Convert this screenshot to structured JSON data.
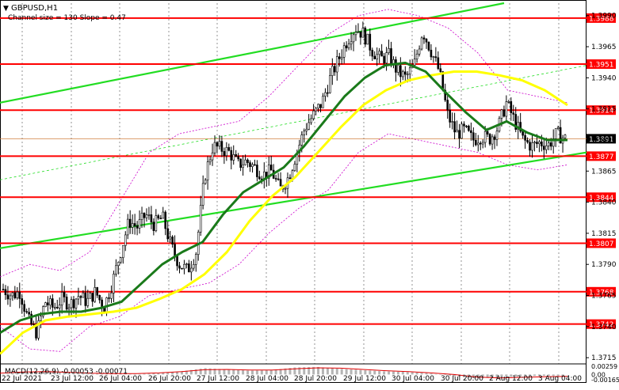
{
  "header": {
    "symbol_label": "GBPUSD,H1",
    "channel_info": "Channel size = 130  Slope = 0.47"
  },
  "macd": {
    "label": "MACD(12,26,9) -0.00053 -0.00071",
    "ticks": [
      "0.00259",
      "0.00",
      "-0.00165"
    ]
  },
  "colors": {
    "candle": "#000000",
    "level_line": "#ff0000",
    "level_badge": "#ff0000",
    "price_badge": "#000000",
    "ma_fast": "#1a7a1a",
    "ma_slow": "#ffff00",
    "channel": "#22dd22",
    "bollinger": "#cc00cc",
    "macd_hist": "#b4b4b4",
    "macd_signal": "#e00000"
  },
  "chart_data": {
    "type": "candlestick",
    "symbol": "GBPUSD",
    "timeframe": "H1",
    "ylim": [
      1.371,
      1.4
    ],
    "y_ticks": [
      1.3715,
      1.374,
      1.3765,
      1.379,
      1.3815,
      1.384,
      1.3865,
      1.389,
      1.3915,
      1.394,
      1.3965,
      1.399
    ],
    "x_ticks": [
      "22 Jul 2021",
      "23 Jul 12:00",
      "26 Jul 04:00",
      "26 Jul 20:00",
      "27 Jul 12:00",
      "28 Jul 04:00",
      "28 Jul 20:00",
      "29 Jul 12:00",
      "30 Jul 04:00",
      "30 Jul 20:00",
      "2 Aug 12:00",
      "3 Aug 04:00"
    ],
    "levels": [
      1.3988,
      1.3951,
      1.3914,
      1.3877,
      1.3844,
      1.3807,
      1.3768,
      1.3742
    ],
    "current_price": 1.3891,
    "close_path": [
      1.377,
      1.3765,
      1.3768,
      1.3745,
      1.3735,
      1.376,
      1.3755,
      1.3762,
      1.3758,
      1.3765,
      1.376,
      1.3768,
      1.3755,
      1.3775,
      1.38,
      1.3825,
      1.382,
      1.383,
      1.3822,
      1.3828,
      1.3805,
      1.379,
      1.3785,
      1.38,
      1.386,
      1.3885,
      1.3883,
      1.388,
      1.387,
      1.3873,
      1.3868,
      1.3862,
      1.3865,
      1.385,
      1.386,
      1.388,
      1.39,
      1.391,
      1.392,
      1.394,
      1.3955,
      1.397,
      1.398,
      1.3975,
      1.3962,
      1.3955,
      1.3958,
      1.3945,
      1.394,
      1.395,
      1.3978,
      1.3962,
      1.3945,
      1.391,
      1.3895,
      1.3898,
      1.389,
      1.3893,
      1.3891,
      1.39,
      1.392,
      1.3905,
      1.389,
      1.3885,
      1.3888,
      1.3886,
      1.3895,
      1.3891
    ],
    "ma_fast_path": [
      1.3735,
      1.3745,
      1.375,
      1.3752,
      1.3752,
      1.3755,
      1.376,
      1.3775,
      1.379,
      1.38,
      1.3808,
      1.383,
      1.3848,
      1.3858,
      1.3868,
      1.3885,
      1.3905,
      1.3925,
      1.394,
      1.395,
      1.3952,
      1.3945,
      1.3928,
      1.3912,
      1.3898,
      1.3905,
      1.3896,
      1.389,
      1.389
    ],
    "ma_slow_path": [
      1.3718,
      1.3735,
      1.3745,
      1.3748,
      1.375,
      1.3752,
      1.3755,
      1.3762,
      1.377,
      1.3782,
      1.38,
      1.3825,
      1.3845,
      1.386,
      1.388,
      1.39,
      1.3918,
      1.393,
      1.3938,
      1.3942,
      1.3945,
      1.3945,
      1.3942,
      1.3938,
      1.393,
      1.3918
    ]
  }
}
